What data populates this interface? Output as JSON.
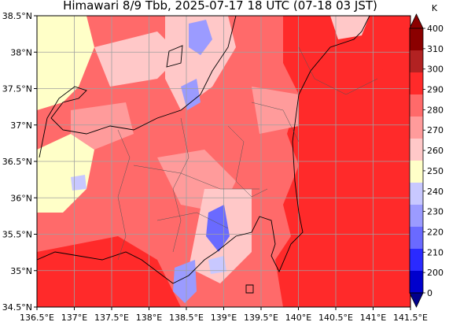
{
  "title": "Himawari 8/9 Tbb, 2025-07-17 18 UTC (07-18 03 JST)",
  "x_ticks": [
    "136.5°E",
    "137°E",
    "137.5°E",
    "138°E",
    "138.5°E",
    "139°E",
    "139.5°E",
    "140°E",
    "140.5°E",
    "141°E",
    "141.5°E"
  ],
  "y_ticks": [
    "38.5°N",
    "38°N",
    "37.5°N",
    "37°N",
    "36.5°N",
    "36°N",
    "35.5°N",
    "35°N",
    "34.5°N"
  ],
  "colorbar": {
    "unit": "K",
    "levels": [
      "400",
      "310",
      "300",
      "290",
      "280",
      "270",
      "260",
      "250",
      "240",
      "230",
      "220",
      "210",
      "200",
      "0"
    ],
    "colors": [
      "#ffffff",
      "#8b0000",
      "#b22222",
      "#ff2a2a",
      "#ff6a6a",
      "#ff9b9b",
      "#ffc8c8",
      "#ffffc8",
      "#c8c8ff",
      "#9b9bff",
      "#6a6aff",
      "#2a2aff",
      "#0000cd",
      "#00008b"
    ]
  },
  "colors": {
    "base_warm": "#ff6a6a",
    "coast": "#000000",
    "grid": "#a0a0a0"
  }
}
